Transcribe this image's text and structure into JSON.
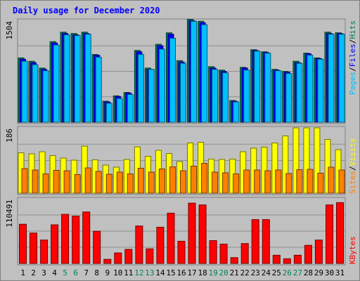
{
  "title": "Daily usage for December 2020",
  "colors": {
    "hits": "#00805c",
    "files": "#0000ff",
    "pages": "#00c0ff",
    "visits": "#ffff00",
    "sites": "#ff8000",
    "kbytes": "#ff0000",
    "weekend_label": "#00805c",
    "weekday_label": "#000000",
    "title": "#0000ff"
  },
  "legend_top": {
    "hits": "Hits",
    "files": "Files",
    "pages": "Pages",
    "sep": "/"
  },
  "legend_mid": {
    "visits": "Visits",
    "sites": "Sites",
    "sep": "/"
  },
  "legend_bot": {
    "kbytes": "KBytes"
  },
  "chart_data": {
    "type": "bar",
    "title": "Daily usage for December 2020",
    "categories": [
      "1",
      "2",
      "3",
      "4",
      "5",
      "6",
      "7",
      "8",
      "9",
      "10",
      "11",
      "12",
      "13",
      "14",
      "15",
      "16",
      "17",
      "18",
      "19",
      "20",
      "21",
      "22",
      "23",
      "24",
      "25",
      "26",
      "27",
      "28",
      "29",
      "30",
      "31"
    ],
    "weekend_days": [
      "5",
      "6",
      "12",
      "13",
      "19",
      "20",
      "26",
      "27"
    ],
    "panels": [
      {
        "name": "requests",
        "max_label": "1504",
        "ylim": [
          0,
          1504
        ],
        "series": [
          {
            "name": "Hits",
            "color": "#00805c",
            "values": [
              950,
              900,
              800,
              1190,
              1330,
              1310,
              1330,
              1000,
              310,
              390,
              440,
              1060,
              800,
              1150,
              1320,
              910,
              1520,
              1490,
              820,
              770,
              320,
              810,
              1070,
              1040,
              780,
              750,
              900,
              1020,
              950,
              1330,
              1320
            ]
          },
          {
            "name": "Files",
            "color": "#0000ff",
            "values": [
              930,
              880,
              780,
              1170,
              1310,
              1290,
              1310,
              990,
              300,
              380,
              430,
              1040,
              780,
              1130,
              1300,
              890,
              1500,
              1470,
              800,
              750,
              310,
              800,
              1060,
              1030,
              770,
              740,
              880,
              1010,
              940,
              1310,
              1310
            ]
          },
          {
            "name": "Pages",
            "color": "#00c0ff",
            "values": [
              900,
              850,
              760,
              1140,
              1290,
              1280,
              1300,
              960,
              280,
              350,
              410,
              1000,
              780,
              1080,
              1240,
              870,
              1490,
              1440,
              780,
              730,
              300,
              770,
              1050,
              1020,
              760,
              720,
              870,
              990,
              930,
              1300,
              1300
            ]
          }
        ]
      },
      {
        "name": "visitors",
        "max_label": "186",
        "ylim": [
          0,
          186
        ],
        "series": [
          {
            "name": "Visits",
            "color": "#ffff00",
            "values": [
              115,
              112,
              118,
              107,
              100,
              94,
              134,
              95,
              80,
              74,
              96,
              132,
              105,
              122,
              113,
              90,
              143,
              145,
              97,
              96,
              97,
              118,
              128,
              131,
              143,
              163,
              186,
              186,
              186,
              153,
              124
            ]
          },
          {
            "name": "Sites",
            "color": "#ff8000",
            "values": [
              70,
              66,
              55,
              65,
              64,
              53,
              72,
              62,
              54,
              60,
              55,
              71,
              60,
              69,
              75,
              64,
              77,
              85,
              60,
              58,
              55,
              66,
              66,
              64,
              66,
              56,
              67,
              68,
              57,
              74,
              66
            ]
          }
        ]
      },
      {
        "name": "traffic",
        "max_label": "110491",
        "ylim": [
          0,
          110491
        ],
        "series": [
          {
            "name": "KBytes",
            "color": "#ff0000",
            "values": [
              67000,
              52000,
              40000,
              66000,
              84000,
              81000,
              88000,
              55000,
              7000,
              18000,
              24000,
              64000,
              25000,
              62000,
              86000,
              38000,
              103000,
              100000,
              39000,
              33000,
              10000,
              34000,
              75000,
              75000,
              14000,
              8000,
              14000,
              31000,
              40000,
              100000,
              104000
            ]
          }
        ]
      }
    ]
  }
}
